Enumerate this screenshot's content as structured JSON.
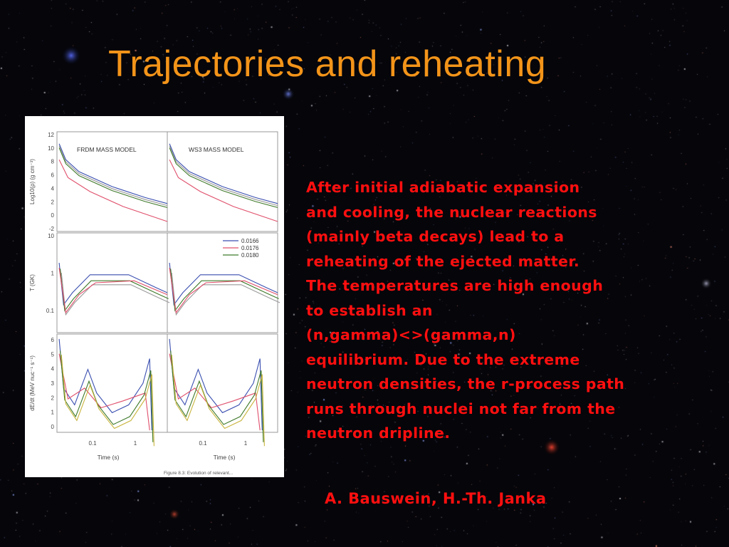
{
  "slide": {
    "title": "Trajectories and reheating",
    "text_lines": [
      "After initial adiabatic expansion",
      "and cooling, the nuclear reactions",
      "(mainly beta decays) lead to a",
      "reheating of the ejected matter.",
      "The temperatures are high enough",
      "to establish an",
      "(n,gamma)<>(gamma,n)",
      "equilibrium. Due to the extreme",
      "neutron densities, the r-process path",
      "runs through nuclei not far from the",
      "neutron dripline."
    ],
    "credit": "A. Bauswein, H.-Th. Janka",
    "colors": {
      "title": "#f39419",
      "text": "#ff0f0f",
      "background": "#05050a"
    }
  },
  "figure": {
    "panel_titles": [
      "FRDM MASS MODEL",
      "WS3 MASS MODEL"
    ],
    "legend": [
      "0.0166",
      "0.0176",
      "0.0180"
    ],
    "legend_colors": [
      "#3a4fb0",
      "#e0506c",
      "#3f7a2a"
    ],
    "ylabels": [
      "Log10(ρ) (g cm⁻³)",
      "T (GK)",
      "dE/dt (MeV nuc⁻¹ s⁻¹)"
    ],
    "xlabel": "Time (s)",
    "caption": "Figure 8.3: Evolution of relevant...",
    "ticks": {
      "row1": [
        "12",
        "10",
        "8",
        "6",
        "4",
        "2",
        "0",
        "-2"
      ],
      "row2": [
        "10",
        "1",
        "0.1"
      ],
      "row3": [
        "6",
        "5",
        "4",
        "3",
        "2",
        "1",
        "0"
      ],
      "x": [
        "0.1",
        "1"
      ]
    }
  }
}
